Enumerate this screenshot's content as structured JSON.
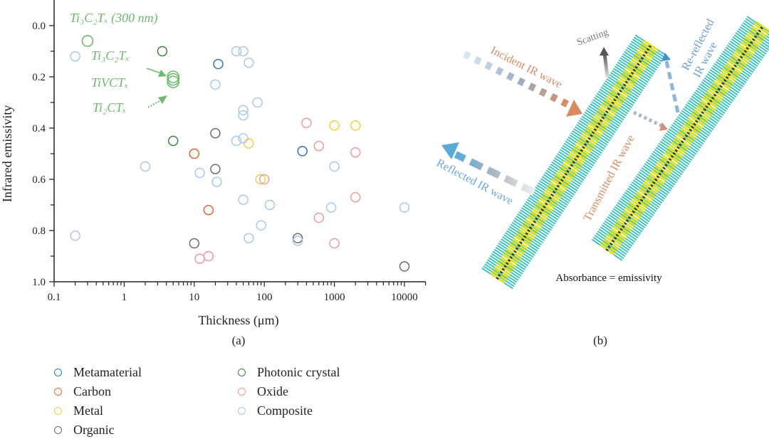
{
  "chart_data": {
    "type": "scatter",
    "panel_label": "(a)",
    "xlabel": "Thickness (μm)",
    "ylabel": "Infrared emissivity",
    "xscale": "log",
    "xlim": [
      0.1,
      20000
    ],
    "ylim": [
      -0.1,
      1.0
    ],
    "y_inverted": true,
    "x_ticks": [
      "0.1",
      "1",
      "10",
      "100",
      "1000",
      "10000"
    ],
    "y_ticks": [
      "0.0",
      "0.2",
      "0.4",
      "0.6",
      "0.8",
      "1.0"
    ],
    "grid": false,
    "legend_position": "bottom",
    "series": [
      {
        "name": "Metamaterial",
        "color": "#2e75b6",
        "points": [
          [
            22,
            0.15
          ],
          [
            350,
            0.49
          ]
        ]
      },
      {
        "name": "Carbon",
        "color": "#e8622c",
        "points": [
          [
            10,
            0.5
          ],
          [
            16,
            0.72
          ]
        ]
      },
      {
        "name": "Metal",
        "color": "#f2cf3a",
        "points": [
          [
            1000,
            0.39
          ],
          [
            2000,
            0.39
          ],
          [
            60,
            0.46
          ],
          [
            88,
            0.6
          ]
        ]
      },
      {
        "name": "Organic",
        "color": "#6b6b6b",
        "points": [
          [
            20,
            0.42
          ],
          [
            20,
            0.56
          ],
          [
            300,
            0.83
          ],
          [
            10,
            0.85
          ],
          [
            10000,
            0.94
          ]
        ]
      },
      {
        "name": "Photonic crystal",
        "color": "#3f7f3f",
        "points": [
          [
            3.5,
            0.1
          ],
          [
            5,
            0.45
          ]
        ]
      },
      {
        "name": "Oxide",
        "color": "#ee9a9a",
        "points": [
          [
            400,
            0.38
          ],
          [
            600,
            0.47
          ],
          [
            2000,
            0.495
          ],
          [
            100,
            0.6
          ],
          [
            2000,
            0.67
          ],
          [
            600,
            0.75
          ],
          [
            1000,
            0.85
          ],
          [
            16,
            0.9
          ],
          [
            12,
            0.91
          ]
        ]
      },
      {
        "name": "Composite",
        "color": "#a9c8e8",
        "points": [
          [
            0.2,
            0.12
          ],
          [
            40,
            0.1
          ],
          [
            50,
            0.1
          ],
          [
            60,
            0.145
          ],
          [
            20,
            0.23
          ],
          [
            80,
            0.3
          ],
          [
            50,
            0.33
          ],
          [
            50,
            0.35
          ],
          [
            50,
            0.44
          ],
          [
            40,
            0.45
          ],
          [
            2,
            0.55
          ],
          [
            1000,
            0.55
          ],
          [
            12,
            0.575
          ],
          [
            21,
            0.61
          ],
          [
            50,
            0.68
          ],
          [
            120,
            0.7
          ],
          [
            900,
            0.71
          ],
          [
            10000,
            0.71
          ],
          [
            90,
            0.78
          ],
          [
            0.2,
            0.82
          ],
          [
            60,
            0.83
          ],
          [
            300,
            0.84
          ]
        ]
      }
    ],
    "annotated_points": {
      "color": "#6dba6d",
      "points": [
        [
          0.3,
          0.06
        ],
        [
          5,
          0.2
        ],
        [
          5,
          0.21
        ],
        [
          5,
          0.22
        ]
      ],
      "labels": [
        "Ti₃C₂Tₓ (300 nm)",
        "Ti₃C₂Tₓ",
        "TiVCTₓ",
        "Ti₂CTₓ"
      ]
    }
  },
  "diagram": {
    "panel_label": "(b)",
    "labels": {
      "incident": "Incident IR wave",
      "scattering": "Scatting",
      "re_reflected_line1": "Re-reflected",
      "re_reflected_line2": "IR wave",
      "reflected": "Reflected IR wave",
      "transmitted": "Transmitted IR wave",
      "absorbance": "Absorbance = emissivity"
    },
    "colors": {
      "incident": "#d98a5f",
      "reflected": "#5aaad8",
      "scatter": "#777777",
      "re_reflected": "#6a9fd0",
      "layer_outer": "#3fc2c0",
      "layer_inner": "#e6e21a"
    }
  }
}
